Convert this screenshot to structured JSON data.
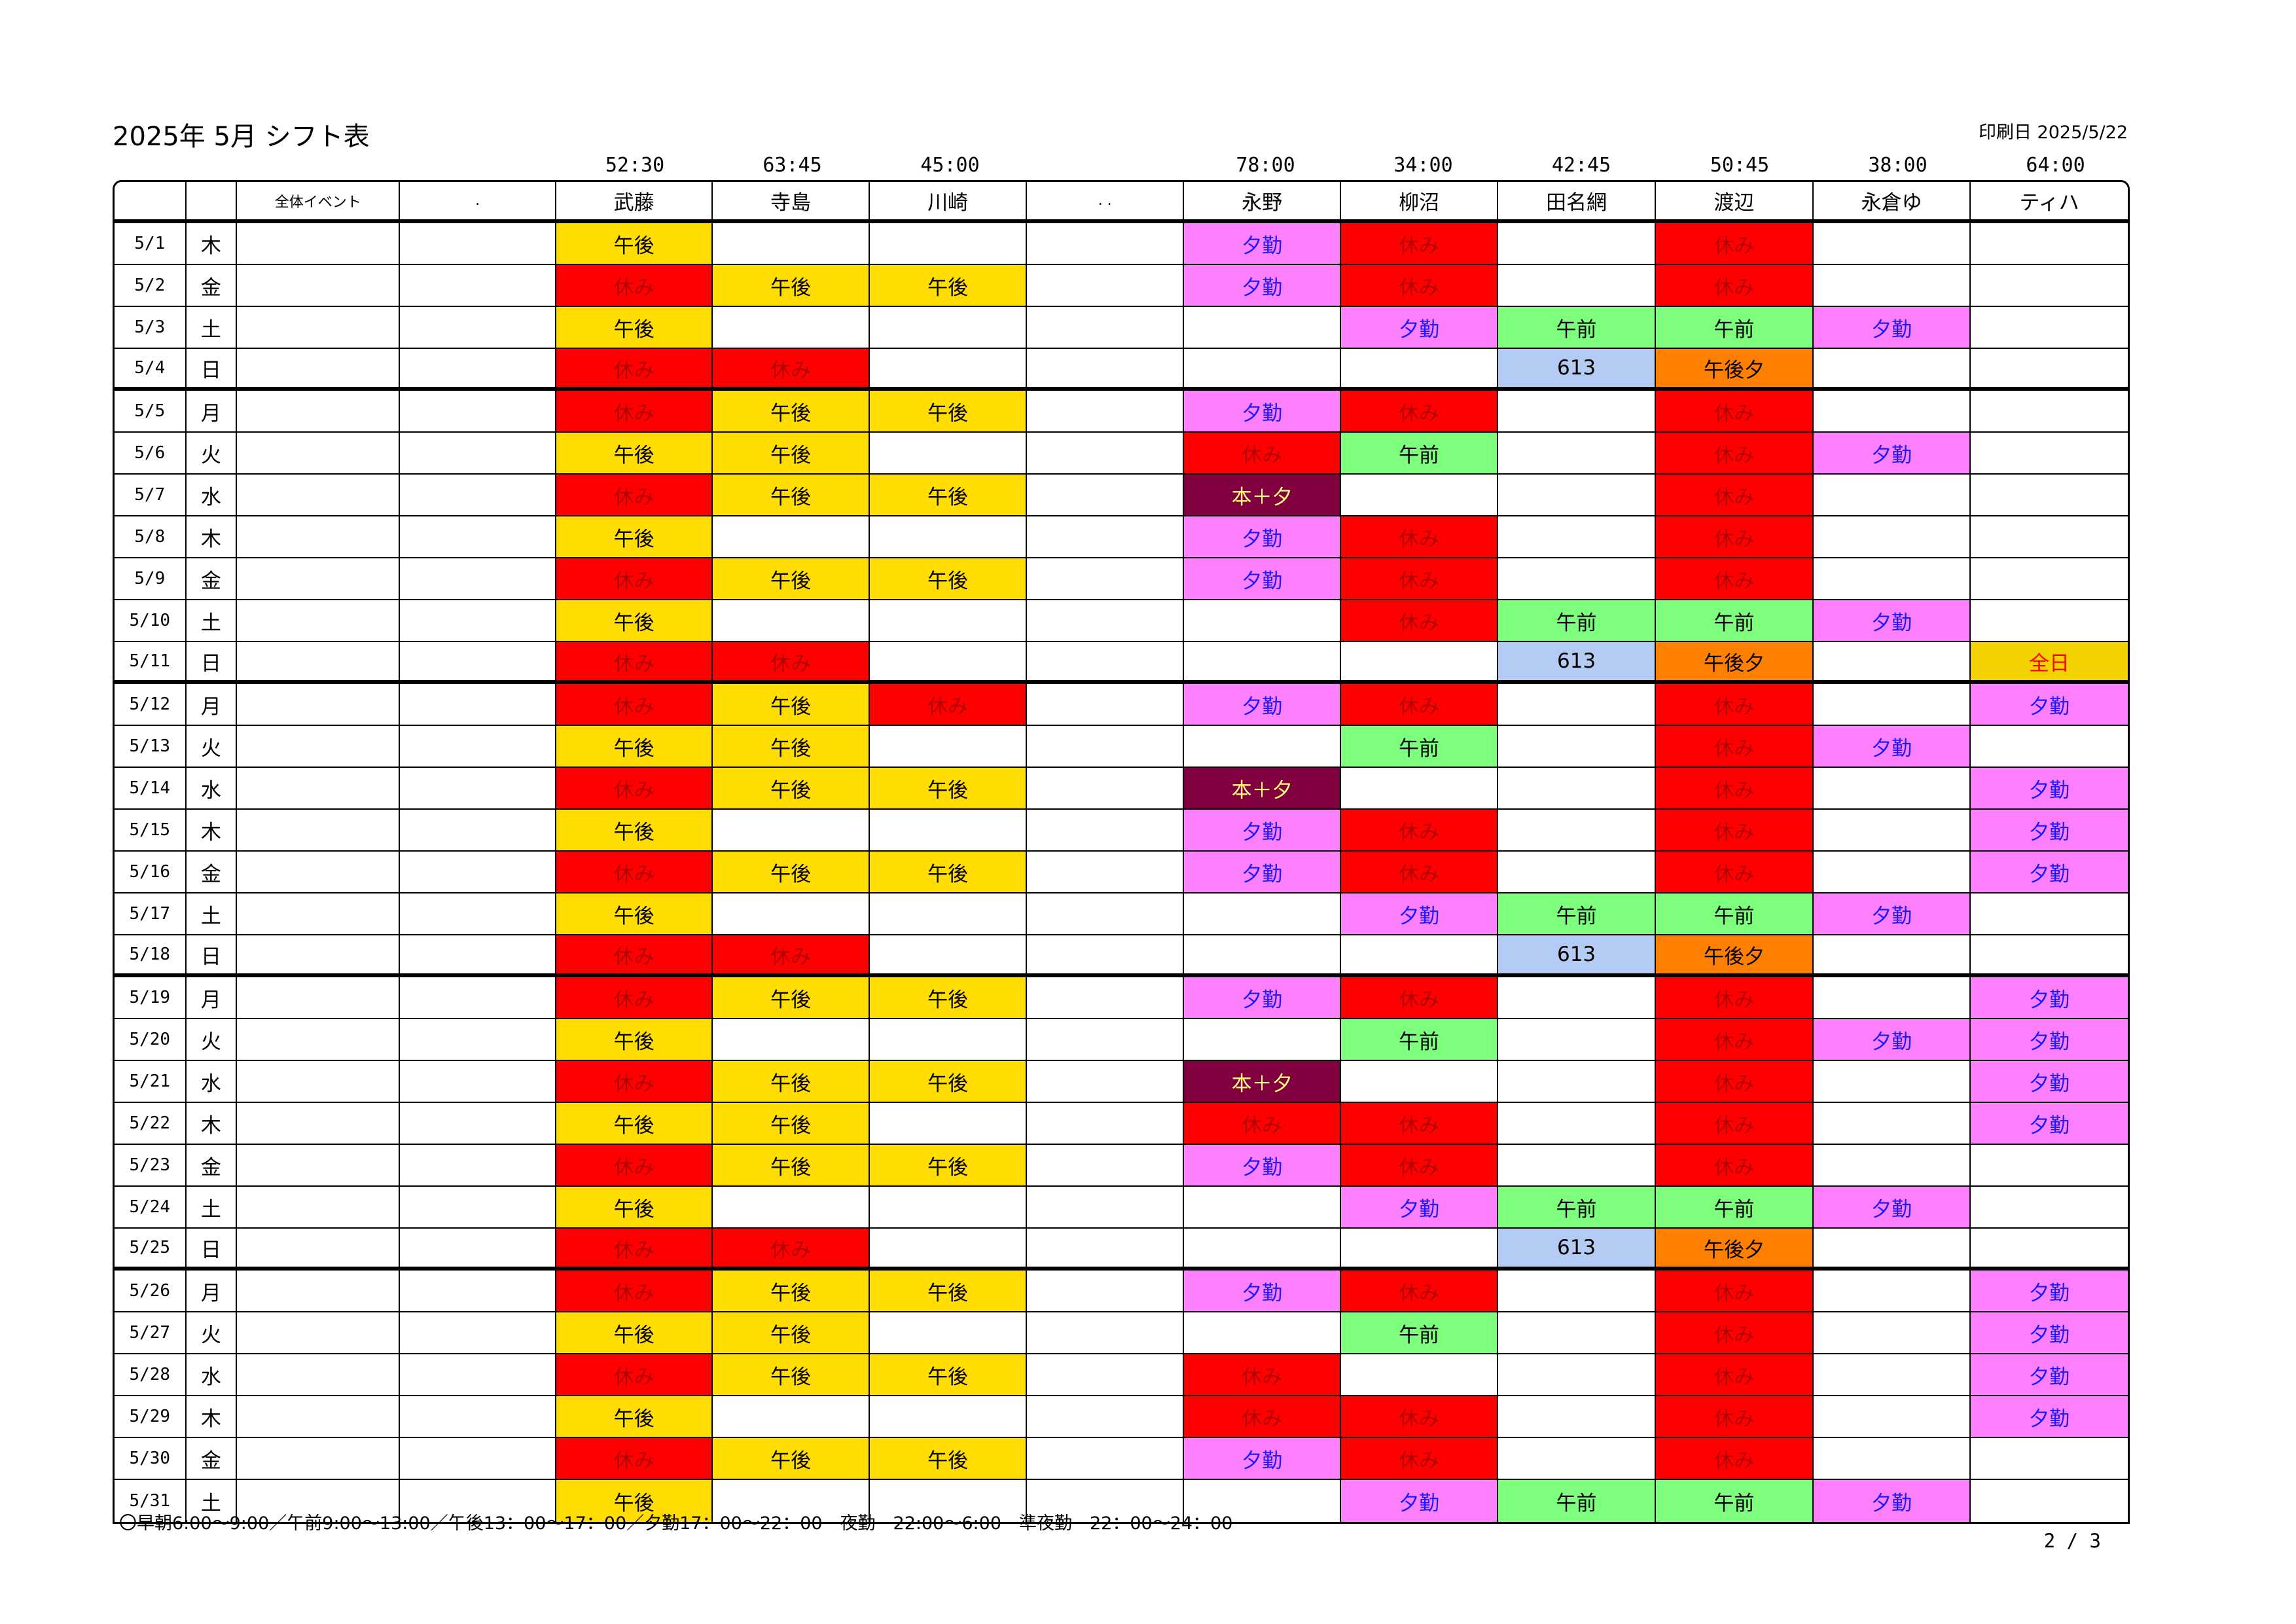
{
  "title": "2025年 5月 シフト表",
  "print_date": "印刷日 2025/5/22",
  "columns": {
    "event_header": "全体イベント",
    "blank_header_1": ".",
    "blank_header_2": ". .",
    "staff": [
      {
        "name": "武藤",
        "hours": "52:30"
      },
      {
        "name": "寺島",
        "hours": "63:45"
      },
      {
        "name": "川崎",
        "hours": "45:00"
      },
      {
        "name": "",
        "hours": ""
      },
      {
        "name": "永野",
        "hours": "78:00"
      },
      {
        "name": "柳沼",
        "hours": "34:00"
      },
      {
        "name": "田名網",
        "hours": "42:45"
      },
      {
        "name": "渡辺",
        "hours": "50:45"
      },
      {
        "name": "永倉ゆ",
        "hours": "38:00"
      },
      {
        "name": "ティハ",
        "hours": "64:00"
      }
    ]
  },
  "rows": [
    {
      "date": "5/1",
      "dow": "木",
      "shifts": [
        "午後",
        "",
        "",
        "",
        "夕勤",
        "休み",
        "",
        "休み",
        "",
        ""
      ]
    },
    {
      "date": "5/2",
      "dow": "金",
      "shifts": [
        "休み",
        "午後",
        "午後",
        "",
        "夕勤",
        "休み",
        "",
        "休み",
        "",
        ""
      ]
    },
    {
      "date": "5/3",
      "dow": "土",
      "shifts": [
        "午後",
        "",
        "",
        "",
        "",
        "夕勤",
        "午前",
        "午前",
        "夕勤",
        ""
      ]
    },
    {
      "date": "5/4",
      "dow": "日",
      "shifts": [
        "休み",
        "休み",
        "",
        "",
        "",
        "",
        "613",
        "午後夕",
        "",
        ""
      ]
    },
    {
      "date": "5/5",
      "dow": "月",
      "shifts": [
        "休み",
        "午後",
        "午後",
        "",
        "夕勤",
        "休み",
        "",
        "休み",
        "",
        ""
      ]
    },
    {
      "date": "5/6",
      "dow": "火",
      "shifts": [
        "午後",
        "午後",
        "",
        "",
        "休み",
        "午前",
        "",
        "休み",
        "夕勤",
        ""
      ]
    },
    {
      "date": "5/7",
      "dow": "水",
      "shifts": [
        "休み",
        "午後",
        "午後",
        "",
        "本＋夕",
        "",
        "",
        "休み",
        "",
        ""
      ]
    },
    {
      "date": "5/8",
      "dow": "木",
      "shifts": [
        "午後",
        "",
        "",
        "",
        "夕勤",
        "休み",
        "",
        "休み",
        "",
        ""
      ]
    },
    {
      "date": "5/9",
      "dow": "金",
      "shifts": [
        "休み",
        "午後",
        "午後",
        "",
        "夕勤",
        "休み",
        "",
        "休み",
        "",
        ""
      ]
    },
    {
      "date": "5/10",
      "dow": "土",
      "shifts": [
        "午後",
        "",
        "",
        "",
        "",
        "休み",
        "午前",
        "午前",
        "夕勤",
        ""
      ]
    },
    {
      "date": "5/11",
      "dow": "日",
      "shifts": [
        "休み",
        "休み",
        "",
        "",
        "",
        "",
        "613",
        "午後夕",
        "",
        "全日"
      ]
    },
    {
      "date": "5/12",
      "dow": "月",
      "shifts": [
        "休み",
        "午後",
        "休み",
        "",
        "夕勤",
        "休み",
        "",
        "休み",
        "",
        "夕勤"
      ]
    },
    {
      "date": "5/13",
      "dow": "火",
      "shifts": [
        "午後",
        "午後",
        "",
        "",
        "",
        "午前",
        "",
        "休み",
        "夕勤",
        ""
      ]
    },
    {
      "date": "5/14",
      "dow": "水",
      "shifts": [
        "休み",
        "午後",
        "午後",
        "",
        "本＋夕",
        "",
        "",
        "休み",
        "",
        "夕勤"
      ]
    },
    {
      "date": "5/15",
      "dow": "木",
      "shifts": [
        "午後",
        "",
        "",
        "",
        "夕勤",
        "休み",
        "",
        "休み",
        "",
        "夕勤"
      ]
    },
    {
      "date": "5/16",
      "dow": "金",
      "shifts": [
        "休み",
        "午後",
        "午後",
        "",
        "夕勤",
        "休み",
        "",
        "休み",
        "",
        "夕勤"
      ]
    },
    {
      "date": "5/17",
      "dow": "土",
      "shifts": [
        "午後",
        "",
        "",
        "",
        "",
        "夕勤",
        "午前",
        "午前",
        "夕勤",
        ""
      ]
    },
    {
      "date": "5/18",
      "dow": "日",
      "shifts": [
        "休み",
        "休み",
        "",
        "",
        "",
        "",
        "613",
        "午後夕",
        "",
        ""
      ]
    },
    {
      "date": "5/19",
      "dow": "月",
      "shifts": [
        "休み",
        "午後",
        "午後",
        "",
        "夕勤",
        "休み",
        "",
        "休み",
        "",
        "夕勤"
      ]
    },
    {
      "date": "5/20",
      "dow": "火",
      "shifts": [
        "午後",
        "",
        "",
        "",
        "",
        "午前",
        "",
        "休み",
        "夕勤",
        "夕勤"
      ]
    },
    {
      "date": "5/21",
      "dow": "水",
      "shifts": [
        "休み",
        "午後",
        "午後",
        "",
        "本＋夕",
        "",
        "",
        "休み",
        "",
        "夕勤"
      ]
    },
    {
      "date": "5/22",
      "dow": "木",
      "shifts": [
        "午後",
        "午後",
        "",
        "",
        "休み",
        "休み",
        "",
        "休み",
        "",
        "夕勤"
      ]
    },
    {
      "date": "5/23",
      "dow": "金",
      "shifts": [
        "休み",
        "午後",
        "午後",
        "",
        "夕勤",
        "休み",
        "",
        "休み",
        "",
        ""
      ]
    },
    {
      "date": "5/24",
      "dow": "土",
      "shifts": [
        "午後",
        "",
        "",
        "",
        "",
        "夕勤",
        "午前",
        "午前",
        "夕勤",
        ""
      ]
    },
    {
      "date": "5/25",
      "dow": "日",
      "shifts": [
        "休み",
        "休み",
        "",
        "",
        "",
        "",
        "613",
        "午後夕",
        "",
        ""
      ]
    },
    {
      "date": "5/26",
      "dow": "月",
      "shifts": [
        "休み",
        "午後",
        "午後",
        "",
        "夕勤",
        "休み",
        "",
        "休み",
        "",
        "夕勤"
      ]
    },
    {
      "date": "5/27",
      "dow": "火",
      "shifts": [
        "午後",
        "午後",
        "",
        "",
        "",
        "午前",
        "",
        "休み",
        "",
        "夕勤"
      ]
    },
    {
      "date": "5/28",
      "dow": "水",
      "shifts": [
        "休み",
        "午後",
        "午後",
        "",
        "休み",
        "",
        "",
        "休み",
        "",
        "夕勤"
      ]
    },
    {
      "date": "5/29",
      "dow": "木",
      "shifts": [
        "午後",
        "",
        "",
        "",
        "休み",
        "休み",
        "",
        "休み",
        "",
        "夕勤"
      ]
    },
    {
      "date": "5/30",
      "dow": "金",
      "shifts": [
        "休み",
        "午後",
        "午後",
        "",
        "夕勤",
        "休み",
        "",
        "休み",
        "",
        ""
      ]
    },
    {
      "date": "5/31",
      "dow": "土",
      "shifts": [
        "午後",
        "",
        "",
        "",
        "",
        "夕勤",
        "午前",
        "午前",
        "夕勤",
        ""
      ]
    }
  ],
  "footnote": "〇早朝6:00～9:00／午前9:00～13:00／午後13：00～17：00／夕勤17：00～22：00　夜勤　22:00～6:00　準夜勤　22：00～24：00",
  "page_number": "2 / 3",
  "colors": {
    "休み": "#ff0000",
    "午後": "#ffdd00",
    "夕勤": "#ff80ff",
    "午前": "#7dff7d",
    "613": "#b4ccf4",
    "午後夕": "#ff7f00",
    "本＋夕": "#800040",
    "全日": "#f2d300"
  }
}
